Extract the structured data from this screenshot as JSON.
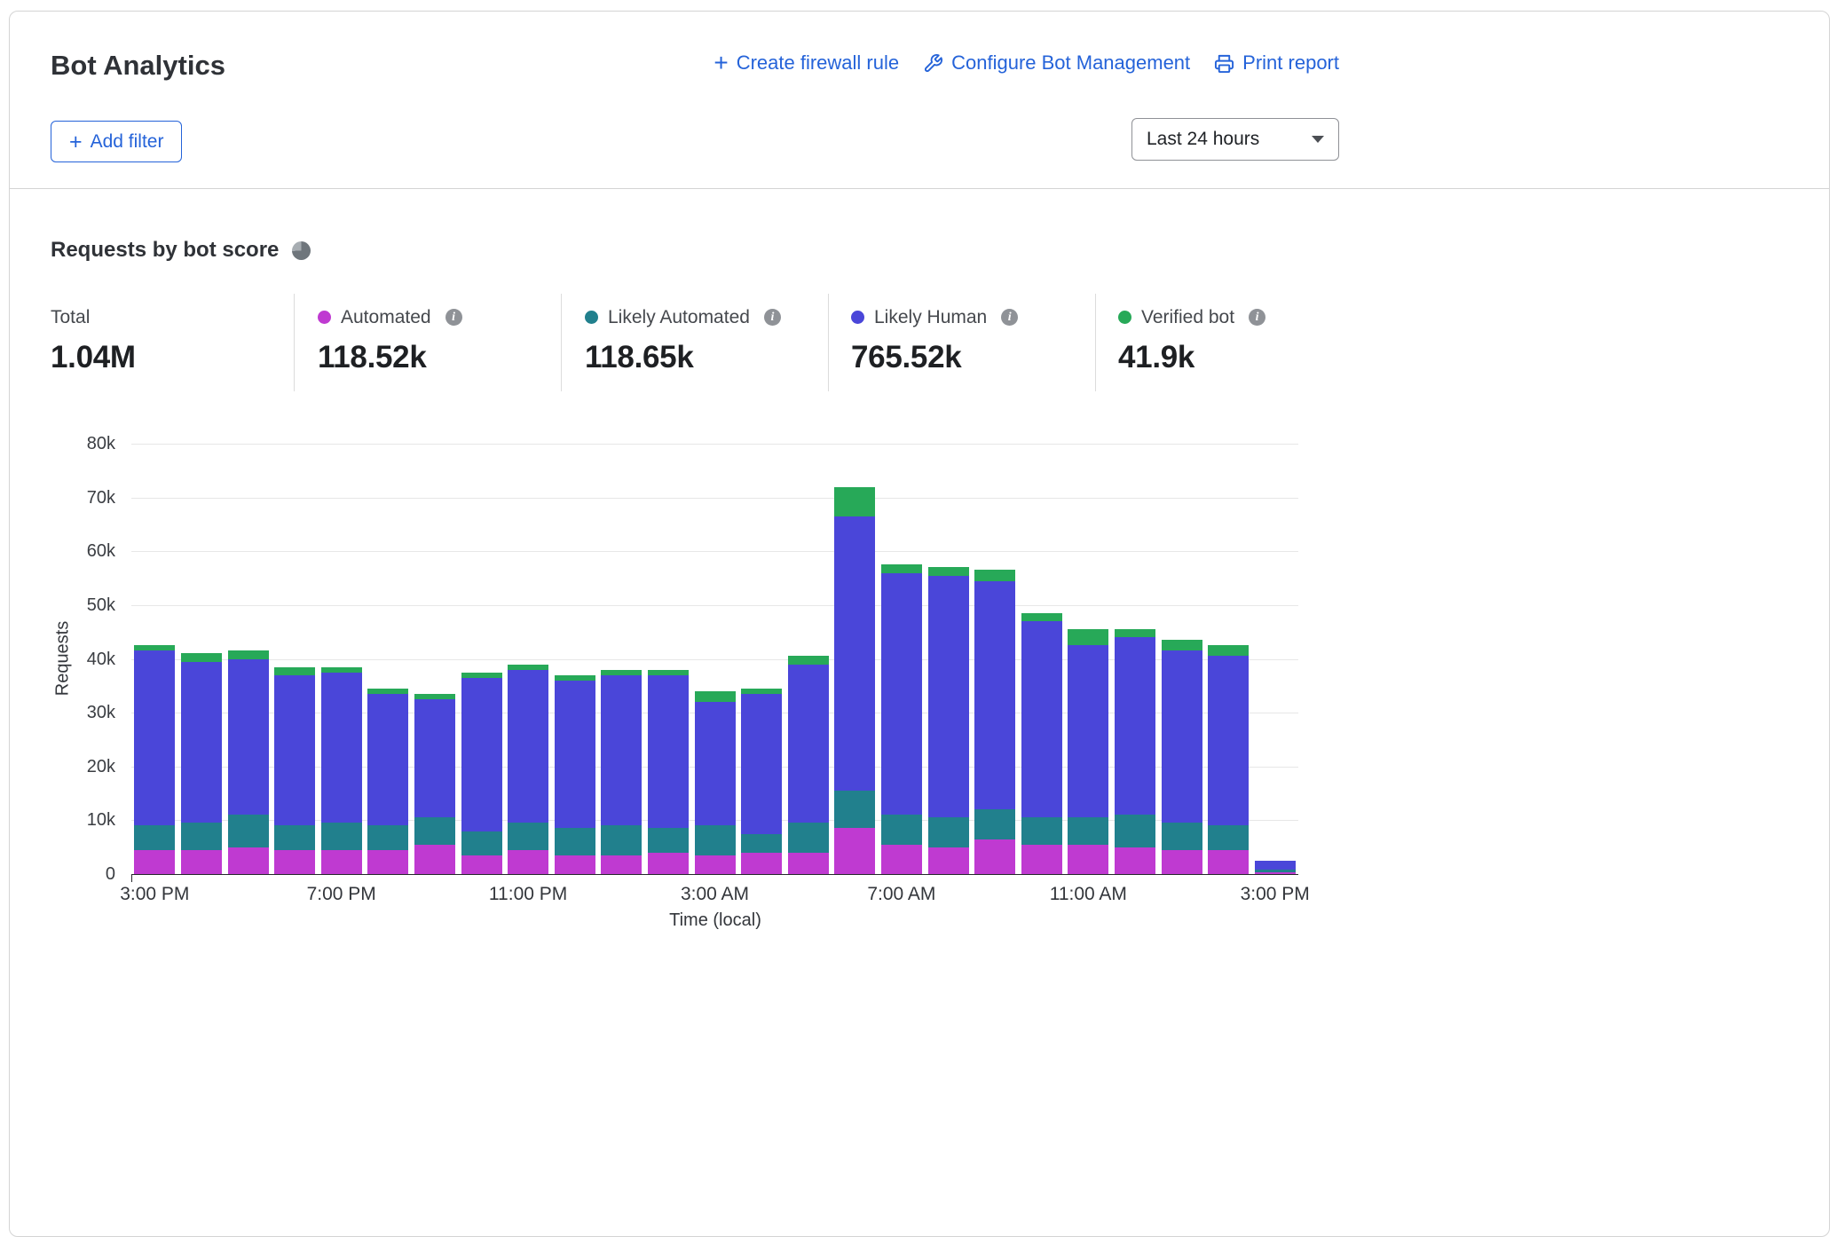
{
  "header": {
    "title": "Bot Analytics",
    "actions": [
      {
        "label": "Create firewall rule",
        "icon": "plus-icon"
      },
      {
        "label": "Configure Bot Management",
        "icon": "wrench-icon"
      },
      {
        "label": "Print report",
        "icon": "printer-icon"
      }
    ],
    "add_filter_label": "Add filter",
    "time_range": "Last 24 hours"
  },
  "section": {
    "heading": "Requests by bot score"
  },
  "stats": [
    {
      "label": "Total",
      "value": "1.04M"
    },
    {
      "label": "Automated",
      "value": "118.52k",
      "dot_color": "#bf3ad1",
      "info": true
    },
    {
      "label": "Likely Automated",
      "value": "118.65k",
      "dot_color": "#21808d",
      "info": true
    },
    {
      "label": "Likely Human",
      "value": "765.52k",
      "dot_color": "#4a46d9",
      "info": true
    },
    {
      "label": "Verified bot",
      "value": "41.9k",
      "dot_color": "#27a958",
      "info": true
    }
  ],
  "colors": {
    "link": "#2563d9",
    "grid": "#e7e7e7",
    "axis": "#26282c",
    "border": "#d4d4d4"
  },
  "chart_data": {
    "type": "bar",
    "stacked": true,
    "title": "Requests by bot score",
    "xlabel": "Time (local)",
    "ylabel": "Requests",
    "units_note": "values in thousands of requests",
    "ylim_k": [
      0,
      80
    ],
    "ytick_values_k": [
      0,
      10,
      20,
      30,
      40,
      50,
      60,
      70,
      80
    ],
    "ytick_labels": [
      "0",
      "10k",
      "20k",
      "30k",
      "40k",
      "50k",
      "60k",
      "70k",
      "80k"
    ],
    "x": [
      "3:00 PM",
      "4:00 PM",
      "5:00 PM",
      "6:00 PM",
      "7:00 PM",
      "8:00 PM",
      "9:00 PM",
      "10:00 PM",
      "11:00 PM",
      "12:00 AM",
      "1:00 AM",
      "2:00 AM",
      "3:00 AM",
      "4:00 AM",
      "5:00 AM",
      "6:00 AM",
      "7:00 AM",
      "8:00 AM",
      "9:00 AM",
      "10:00 AM",
      "11:00 AM",
      "12:00 PM",
      "1:00 PM",
      "2:00 PM",
      "3:00 PM"
    ],
    "x_tick_indices": [
      0,
      4,
      8,
      12,
      16,
      20,
      24
    ],
    "series": [
      {
        "name": "Automated",
        "color": "#bf3ad1",
        "values_k": [
          4.5,
          4.5,
          5,
          4.5,
          4.5,
          4.5,
          5.5,
          3.5,
          4.5,
          3.5,
          3.5,
          4,
          3.5,
          4,
          4,
          8.5,
          5.5,
          5,
          6.5,
          5.5,
          5.5,
          5,
          4.5,
          4.5,
          0.3
        ]
      },
      {
        "name": "Likely Automated",
        "color": "#21808d",
        "values_k": [
          4.5,
          5,
          6,
          4.5,
          5,
          4.5,
          5,
          4.5,
          5,
          5,
          5.5,
          4.5,
          5.5,
          3.5,
          5.5,
          7,
          5.5,
          5.5,
          5.5,
          5,
          5,
          6,
          5,
          4.5,
          0.5
        ]
      },
      {
        "name": "Likely Human",
        "color": "#4a46d9",
        "values_k": [
          32.5,
          30,
          29,
          28,
          28,
          24.5,
          22,
          28.5,
          28.5,
          27.5,
          28,
          28.5,
          23,
          26,
          29.5,
          51,
          45,
          45,
          42.5,
          36.5,
          32,
          33,
          32,
          31.5,
          1.7
        ]
      },
      {
        "name": "Verified bot",
        "color": "#27a958",
        "values_k": [
          1,
          1.5,
          1.5,
          1.5,
          1,
          1,
          1,
          1,
          1,
          1,
          1,
          1,
          2,
          1,
          1.5,
          5.5,
          1.5,
          1.5,
          2,
          1.5,
          3,
          1.5,
          2,
          2,
          0
        ]
      }
    ]
  }
}
